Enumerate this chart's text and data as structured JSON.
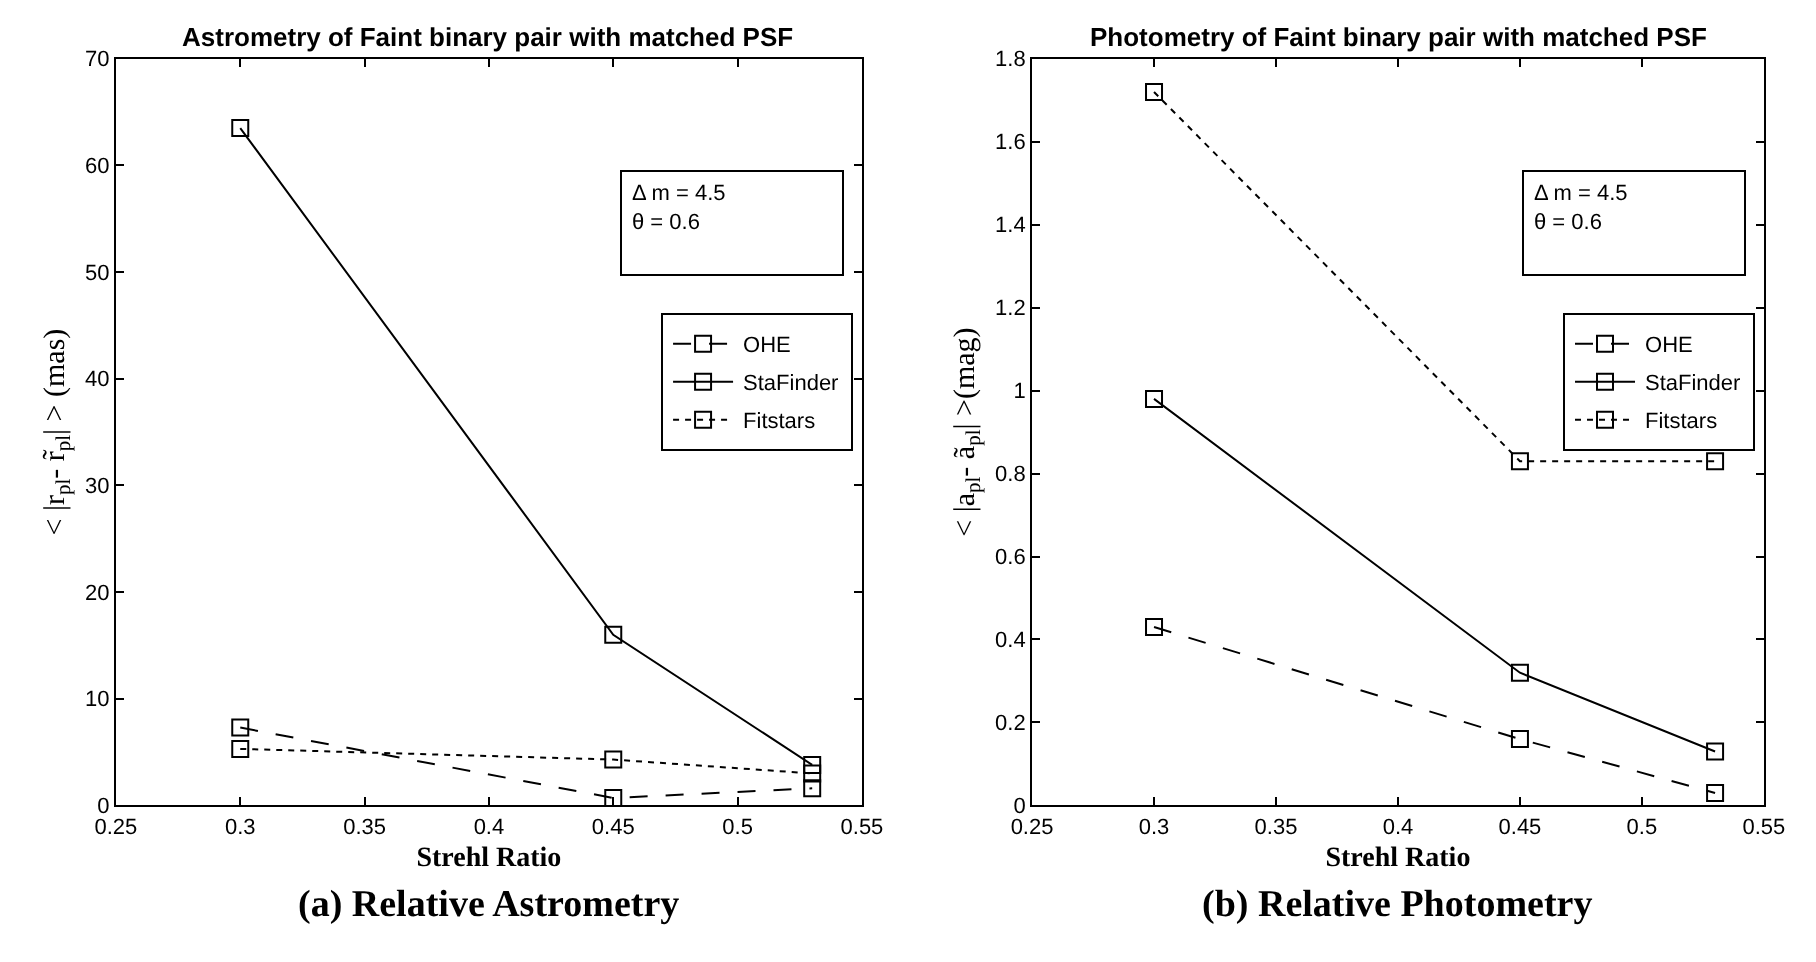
{
  "chart_data": [
    {
      "type": "line",
      "title": "Astrometry of Faint binary pair with matched PSF",
      "xlabel": "Strehl Ratio",
      "ylabel": "< |r$_{pl}$- r̃$_{pl}$| > (mas)",
      "x": [
        0.3,
        0.45,
        0.53
      ],
      "xlim": [
        0.25,
        0.55
      ],
      "xticks": [
        0.25,
        0.3,
        0.35,
        0.4,
        0.45,
        0.5,
        0.55
      ],
      "ylim": [
        0,
        70
      ],
      "yticks": [
        0,
        10,
        20,
        30,
        40,
        50,
        60,
        70
      ],
      "grid": false,
      "legend": "top right",
      "marker": "square",
      "series": [
        {
          "name": "OHE",
          "color": "#000000",
          "line_style": "dashed",
          "values": [
            7.3,
            0.7,
            1.6
          ]
        },
        {
          "name": "StaFinder",
          "color": "#000000",
          "line_style": "solid",
          "values": [
            63.5,
            16,
            3.8
          ]
        },
        {
          "name": "Fitstars",
          "color": "#000000",
          "line_style": "dotted",
          "values": [
            5.3,
            4.3,
            3.0
          ]
        }
      ],
      "annotations": [
        "Δ m = 4.5",
        "θ = 0.6",
        "(a) Relative Astrometry"
      ]
    },
    {
      "type": "line",
      "title": "Photometry of Faint binary pair with matched PSF",
      "xlabel": "Strehl Ratio",
      "ylabel": "< |a$_{pl}$- ã$_{pl}$| >(mag)",
      "x": [
        0.3,
        0.45,
        0.53
      ],
      "xlim": [
        0.25,
        0.55
      ],
      "xticks": [
        0.25,
        0.3,
        0.35,
        0.4,
        0.45,
        0.5,
        0.55
      ],
      "ylim": [
        0,
        1.8
      ],
      "yticks": [
        0,
        0.2,
        0.4,
        0.6,
        0.8,
        1,
        1.2,
        1.4,
        1.6,
        1.8
      ],
      "grid": false,
      "legend": "top right",
      "marker": "square",
      "series": [
        {
          "name": "OHE",
          "color": "#000000",
          "line_style": "dashed",
          "values": [
            0.43,
            0.16,
            0.03
          ]
        },
        {
          "name": "StaFinder",
          "color": "#000000",
          "line_style": "solid",
          "values": [
            0.98,
            0.32,
            0.13
          ]
        },
        {
          "name": "Fitstars",
          "color": "#000000",
          "line_style": "dotted",
          "values": [
            1.72,
            0.83,
            0.83
          ]
        }
      ],
      "annotations": [
        "Δ m = 4.5",
        "θ = 0.6",
        "(b) Relative Photometry"
      ]
    }
  ]
}
